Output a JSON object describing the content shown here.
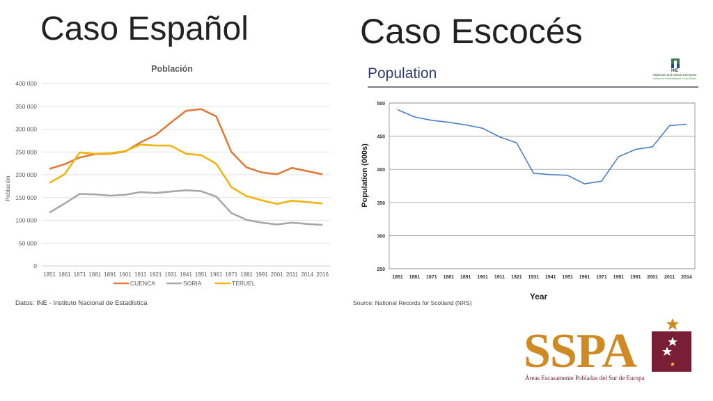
{
  "titles": {
    "left": "Caso Español",
    "right": "Caso Escocés"
  },
  "chart_data": [
    {
      "type": "line",
      "title": "Población",
      "xlabel": "",
      "ylabel": "Población",
      "x": [
        "1851",
        "1861",
        "1871",
        "1881",
        "1891",
        "1901",
        "1911",
        "1921",
        "1931",
        "1941",
        "1951",
        "1961",
        "1971",
        "1981",
        "1991",
        "2001",
        "2011",
        "2014",
        "2016"
      ],
      "ylim": [
        0,
        400000
      ],
      "yticks": [
        "0",
        "50 000",
        "100 000",
        "150 000",
        "200 000",
        "250 000",
        "300 000",
        "350 000",
        "400 000"
      ],
      "grid": true,
      "legend": "bottom",
      "series": [
        {
          "name": "CUENCA",
          "color": "#e07b39",
          "values": [
            213000,
            223000,
            238000,
            245000,
            246000,
            251000,
            271000,
            287000,
            314000,
            340000,
            344000,
            328000,
            250000,
            216000,
            205000,
            201000,
            215000,
            208000,
            201000
          ]
        },
        {
          "name": "SORIA",
          "color": "#a8a8a8",
          "values": [
            117000,
            137000,
            158000,
            157000,
            154000,
            156000,
            162000,
            160000,
            163000,
            166000,
            164000,
            152000,
            116000,
            101000,
            95000,
            91000,
            95000,
            92000,
            90000
          ]
        },
        {
          "name": "TERUEL",
          "color": "#f2b50f",
          "values": [
            182000,
            201000,
            249000,
            246000,
            247000,
            252000,
            266000,
            264000,
            264000,
            246000,
            243000,
            224000,
            173000,
            153000,
            144000,
            136000,
            143000,
            140000,
            137000
          ]
        }
      ]
    },
    {
      "type": "line",
      "title": "Population",
      "xlabel": "Year",
      "ylabel": "Population (000s)",
      "x": [
        "1851",
        "1861",
        "1871",
        "1881",
        "1891",
        "1901",
        "1911",
        "1921",
        "1931",
        "1941",
        "1951",
        "1961",
        "1971",
        "1981",
        "1991",
        "2001",
        "2011",
        "2014"
      ],
      "ylim": [
        250,
        500
      ],
      "yticks": [
        "250",
        "300",
        "350",
        "400",
        "450",
        "500"
      ],
      "grid": true,
      "series": [
        {
          "color": "#4a7fbf",
          "values": [
            490,
            479,
            474,
            471,
            467,
            462,
            449,
            440,
            394,
            392,
            391,
            378,
            382,
            419,
            430,
            434,
            466,
            468
          ]
        }
      ]
    }
  ],
  "sources": {
    "left": "Datos: INE - Instituto Nacional de Estadística",
    "right": "Source: National Records for Scotland (NRS)"
  },
  "hie_logo": {
    "mark": "HIE",
    "line1": "Highlands and Islands Enterprise",
    "line2": "Iomairt na Gàidhealtachd 's nan Eilean"
  },
  "sspa_logo": {
    "text": "SSPA",
    "subtitle": "Áreas Escasamente Pobladas del Sur de Europa",
    "color": "#d08a24",
    "box_color": "#7a1e35"
  }
}
